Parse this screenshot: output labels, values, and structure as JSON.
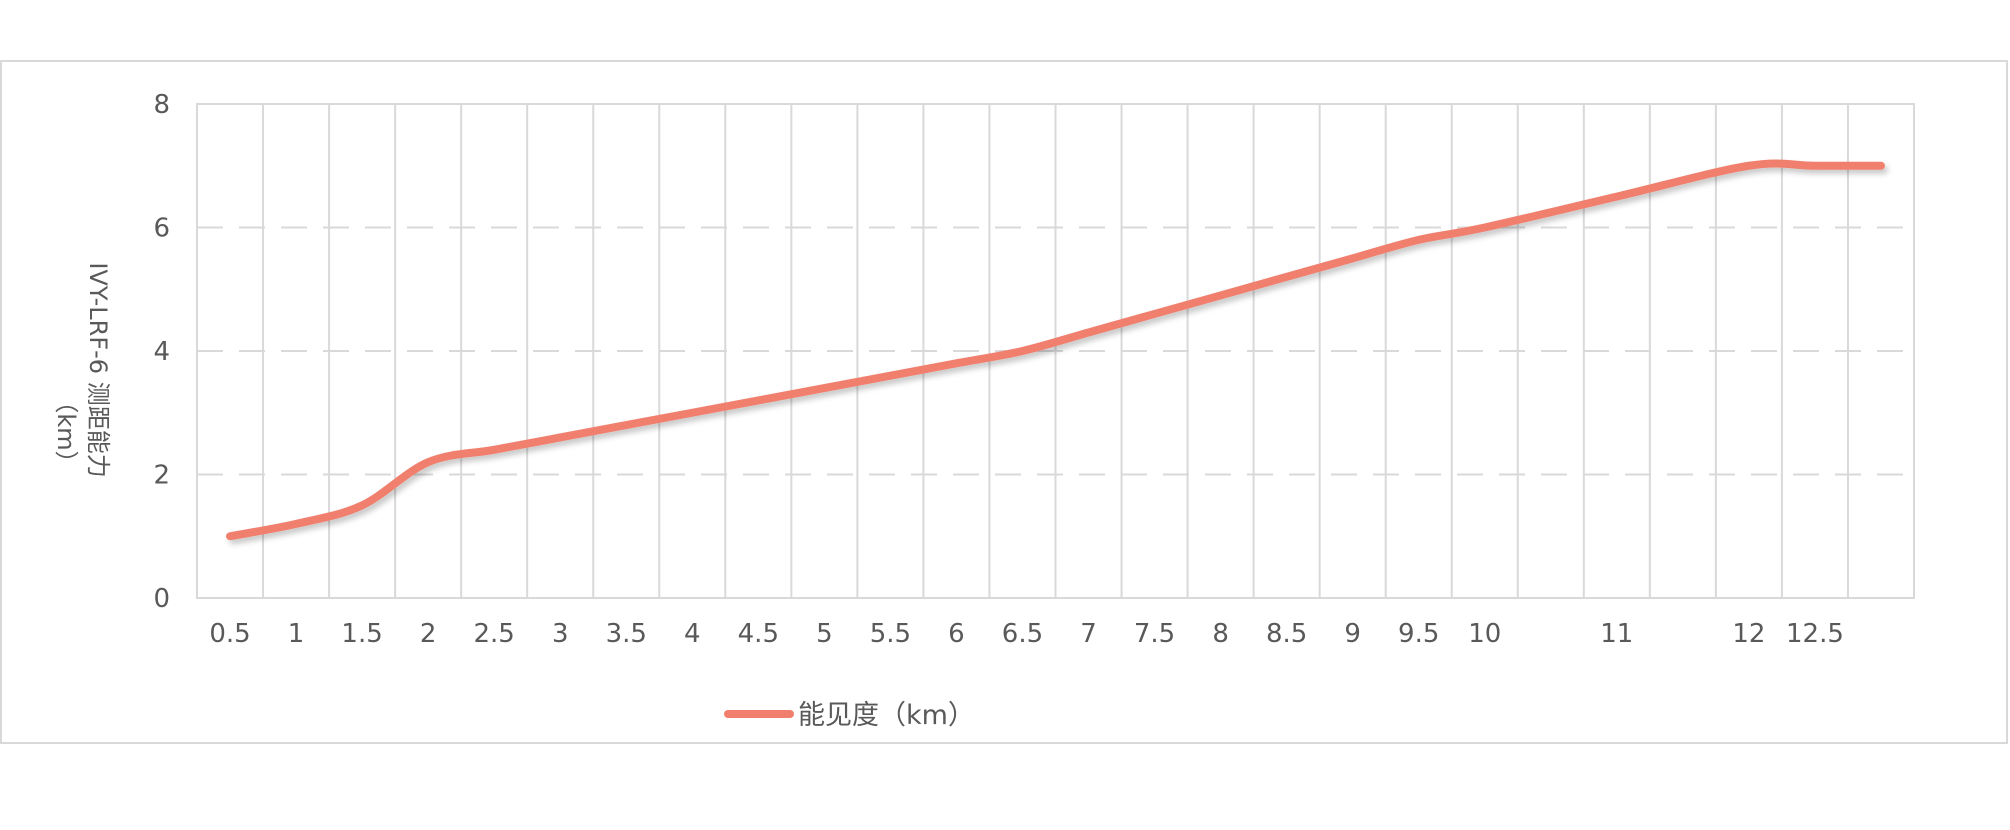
{
  "chart_data": {
    "type": "line",
    "title": "",
    "xlabel": "",
    "ylabel_line1": "IVY-LRF-6 测距能力",
    "ylabel_line2": "（km）",
    "categories": [
      "0.5",
      "1",
      "1.5",
      "2",
      "2.5",
      "3",
      "3.5",
      "4",
      "4.5",
      "5",
      "5.5",
      "6",
      "6.5",
      "7",
      "7.5",
      "8",
      "8.5",
      "9",
      "9.5",
      "10",
      "11",
      "12",
      "12.5"
    ],
    "y_ticks": [
      "0",
      "2",
      "4",
      "6",
      "8"
    ],
    "ylim": [
      0,
      8
    ],
    "grid": true,
    "legend_position": "bottom",
    "series": [
      {
        "name": "能见度（km）",
        "color": "#F07F6E",
        "x": [
          0.5,
          1,
          1.5,
          2,
          2.5,
          3,
          3.5,
          4,
          4.5,
          5,
          5.5,
          6,
          6.5,
          7,
          7.5,
          8,
          8.5,
          9,
          9.5,
          10,
          11,
          12,
          12.5,
          13
        ],
        "values": [
          1.0,
          1.2,
          1.5,
          2.2,
          2.4,
          2.6,
          2.8,
          3.0,
          3.2,
          3.4,
          3.6,
          3.8,
          4.0,
          4.3,
          4.6,
          4.9,
          5.2,
          5.5,
          5.8,
          6.0,
          6.5,
          7.0,
          7.0,
          7.0
        ]
      }
    ]
  }
}
